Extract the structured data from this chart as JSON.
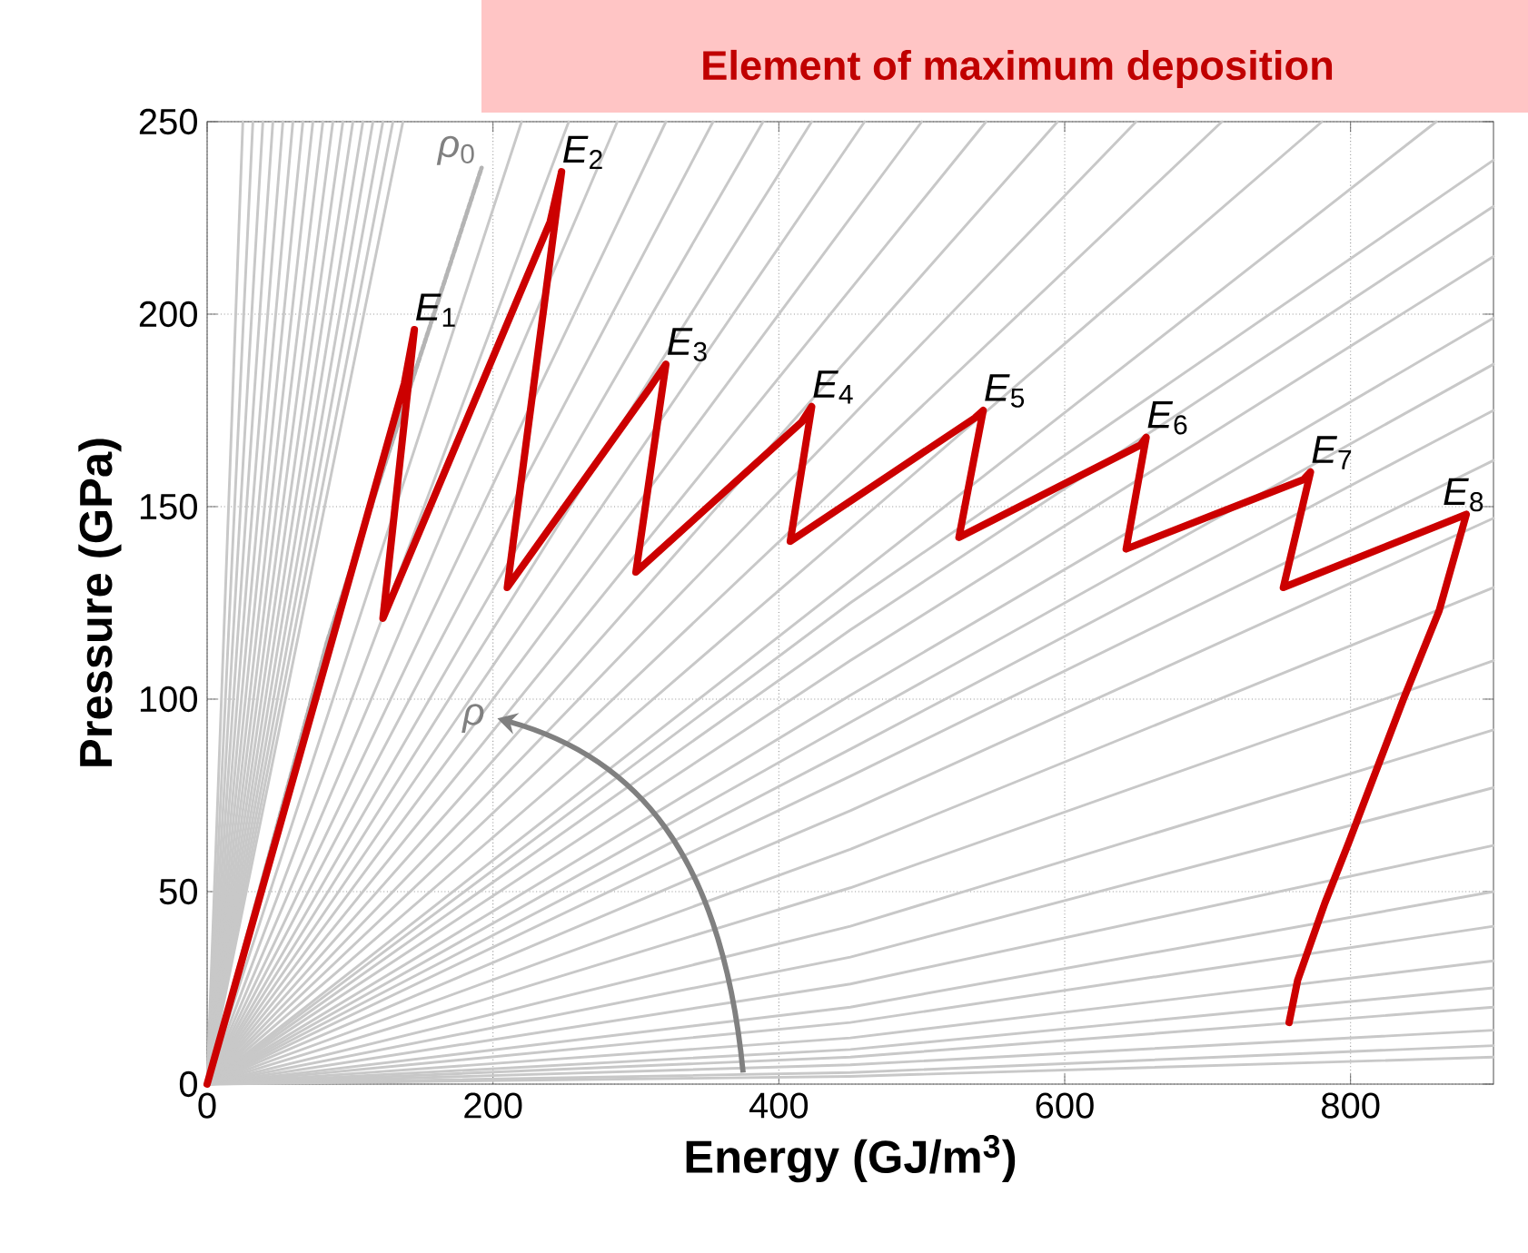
{
  "chart_data": {
    "type": "line",
    "title": "Element of maximum deposition",
    "xlabel": "Energy (GJ/m$^{3}$)",
    "ylabel": "Pressure (GPa)",
    "xlim": [
      0,
      900
    ],
    "ylim": [
      0,
      250
    ],
    "xticks": [
      0,
      200,
      400,
      600,
      800
    ],
    "yticks": [
      0,
      50,
      100,
      150,
      200,
      250
    ],
    "grid": true,
    "annotations": [
      {
        "text": "*E*$_{1}$",
        "x": 145,
        "y": 196
      },
      {
        "text": "*E*$_{2}$",
        "x": 248,
        "y": 237
      },
      {
        "text": "*E*$_{3}$",
        "x": 321,
        "y": 187
      },
      {
        "text": "*E*$_{4}$",
        "x": 423,
        "y": 176
      },
      {
        "text": "*E*$_{5}$",
        "x": 543,
        "y": 175
      },
      {
        "text": "*E*$_{6}$",
        "x": 657,
        "y": 168
      },
      {
        "text": "*E*$_{7}$",
        "x": 772,
        "y": 159
      },
      {
        "text": "*E*$_{8}$",
        "x": 881,
        "y": 148
      },
      {
        "text": "*ρ*$_{0}$",
        "x": 192,
        "y": 238
      },
      {
        "text": "*ρ*",
        "x": 198,
        "y": 95
      }
    ],
    "series": [
      {
        "color": "#c8c8c8",
        "x": [
          0,
          25
        ],
        "values": [
          0,
          250
        ]
      },
      {
        "color": "#c8c8c8",
        "x": [
          0,
          32
        ],
        "values": [
          0,
          250
        ]
      },
      {
        "color": "#c8c8c8",
        "x": [
          0,
          39
        ],
        "values": [
          0,
          250
        ]
      },
      {
        "color": "#c8c8c8",
        "x": [
          0,
          46
        ],
        "values": [
          0,
          250
        ]
      },
      {
        "color": "#c8c8c8",
        "x": [
          0,
          53
        ],
        "values": [
          0,
          250
        ]
      },
      {
        "color": "#c8c8c8",
        "x": [
          0,
          60
        ],
        "values": [
          0,
          250
        ]
      },
      {
        "color": "#c8c8c8",
        "x": [
          0,
          67
        ],
        "values": [
          0,
          250
        ]
      },
      {
        "color": "#c8c8c8",
        "x": [
          0,
          74
        ],
        "values": [
          0,
          250
        ]
      },
      {
        "color": "#c8c8c8",
        "x": [
          0,
          81
        ],
        "values": [
          0,
          250
        ]
      },
      {
        "color": "#c8c8c8",
        "x": [
          0,
          88
        ],
        "values": [
          0,
          250
        ]
      },
      {
        "color": "#c8c8c8",
        "x": [
          0,
          95
        ],
        "values": [
          0,
          250
        ]
      },
      {
        "color": "#c8c8c8",
        "x": [
          0,
          102
        ],
        "values": [
          0,
          250
        ]
      },
      {
        "color": "#c8c8c8",
        "x": [
          0,
          109
        ],
        "values": [
          0,
          250
        ]
      },
      {
        "color": "#c8c8c8",
        "x": [
          0,
          116
        ],
        "values": [
          0,
          250
        ]
      },
      {
        "color": "#c8c8c8",
        "x": [
          0,
          123
        ],
        "values": [
          0,
          250
        ]
      },
      {
        "color": "#c8c8c8",
        "x": [
          0,
          130
        ],
        "values": [
          0,
          250
        ]
      },
      {
        "color": "#c8c8c8",
        "x": [
          0,
          137
        ],
        "values": [
          0,
          250
        ]
      },
      {
        "color": "#c8c8c8",
        "x": [
          0,
          220
        ],
        "values": [
          0,
          250
        ]
      },
      {
        "color": "#c8c8c8",
        "x": [
          0,
          253
        ],
        "values": [
          0,
          250
        ]
      },
      {
        "color": "#c8c8c8",
        "x": [
          0,
          287
        ],
        "values": [
          0,
          250
        ]
      },
      {
        "color": "#c8c8c8",
        "x": [
          0,
          321
        ],
        "values": [
          0,
          250
        ]
      },
      {
        "color": "#c8c8c8",
        "x": [
          0,
          354
        ],
        "values": [
          0,
          250
        ]
      },
      {
        "color": "#c8c8c8",
        "x": [
          0,
          389
        ],
        "values": [
          0,
          250
        ]
      },
      {
        "color": "#c8c8c8",
        "x": [
          0,
          423
        ],
        "values": [
          0,
          250
        ]
      },
      {
        "color": "#c8c8c8",
        "x": [
          0,
          460
        ],
        "values": [
          0,
          250
        ]
      },
      {
        "color": "#c8c8c8",
        "x": [
          0,
          500
        ],
        "values": [
          0,
          250
        ]
      },
      {
        "color": "#c8c8c8",
        "x": [
          0,
          545
        ],
        "values": [
          0,
          250
        ]
      },
      {
        "color": "#c8c8c8",
        "x": [
          0,
          595
        ],
        "values": [
          0,
          250
        ]
      },
      {
        "color": "#c8c8c8",
        "x": [
          0,
          650
        ],
        "values": [
          0,
          250
        ]
      },
      {
        "color": "#c8c8c8",
        "x": [
          0,
          710
        ],
        "values": [
          0,
          250
        ]
      },
      {
        "color": "#c8c8c8",
        "x": [
          0,
          780
        ],
        "values": [
          0,
          250
        ]
      },
      {
        "color": "#c8c8c8",
        "x": [
          0,
          860
        ],
        "values": [
          0,
          250
        ]
      },
      {
        "color": "#c8c8c8",
        "x": [
          0,
          450,
          900
        ],
        "values": [
          0,
          125,
          240
        ]
      },
      {
        "color": "#c8c8c8",
        "x": [
          0,
          450,
          900
        ],
        "values": [
          0,
          118,
          228
        ]
      },
      {
        "color": "#c8c8c8",
        "x": [
          0,
          450,
          900
        ],
        "values": [
          0,
          110,
          215
        ]
      },
      {
        "color": "#c8c8c8",
        "x": [
          0,
          450,
          900
        ],
        "values": [
          0,
          101,
          199
        ]
      },
      {
        "color": "#c8c8c8",
        "x": [
          0,
          450,
          900
        ],
        "values": [
          0,
          94,
          187
        ]
      },
      {
        "color": "#c8c8c8",
        "x": [
          0,
          450,
          900
        ],
        "values": [
          0,
          87,
          175
        ]
      },
      {
        "color": "#c8c8c8",
        "x": [
          0,
          450,
          900
        ],
        "values": [
          0,
          80,
          162
        ]
      },
      {
        "color": "#c8c8c8",
        "x": [
          0,
          450,
          900
        ],
        "values": [
          0,
          71,
          147
        ]
      },
      {
        "color": "#c8c8c8",
        "x": [
          0,
          450,
          900
        ],
        "values": [
          0,
          61,
          129
        ]
      },
      {
        "color": "#c8c8c8",
        "x": [
          0,
          450,
          900
        ],
        "values": [
          0,
          51,
          110
        ]
      },
      {
        "color": "#c8c8c8",
        "x": [
          0,
          450,
          900
        ],
        "values": [
          0,
          41,
          92
        ]
      },
      {
        "color": "#c8c8c8",
        "x": [
          0,
          450,
          900
        ],
        "values": [
          0,
          33,
          77
        ]
      },
      {
        "color": "#c8c8c8",
        "x": [
          0,
          450,
          900
        ],
        "values": [
          0,
          26,
          62
        ]
      },
      {
        "color": "#c8c8c8",
        "x": [
          0,
          450,
          900
        ],
        "values": [
          0,
          20,
          50
        ]
      },
      {
        "color": "#c8c8c8",
        "x": [
          0,
          450,
          900
        ],
        "values": [
          0,
          16,
          41
        ]
      },
      {
        "color": "#c8c8c8",
        "x": [
          0,
          450,
          900
        ],
        "values": [
          0,
          12,
          32
        ]
      },
      {
        "color": "#c8c8c8",
        "x": [
          0,
          450,
          900
        ],
        "values": [
          0,
          9,
          25
        ]
      },
      {
        "color": "#c8c8c8",
        "x": [
          0,
          450,
          900
        ],
        "values": [
          0,
          7,
          20
        ]
      },
      {
        "color": "#c8c8c8",
        "x": [
          0,
          450,
          900
        ],
        "values": [
          0,
          5,
          14
        ]
      },
      {
        "color": "#c8c8c8",
        "x": [
          0,
          450,
          900
        ],
        "values": [
          0,
          3,
          10
        ]
      },
      {
        "color": "#c8c8c8",
        "x": [
          0,
          450,
          900
        ],
        "values": [
          0,
          2,
          7
        ]
      },
      {
        "color": "#b4b4b4",
        "line_style": "dotted",
        "x": [
          0,
          84,
          192
        ],
        "values": [
          0,
          115,
          238
        ]
      },
      {
        "color": "#cc0000",
        "x": [
          0,
          138,
          145,
          123,
          240,
          248,
          210,
          310,
          321,
          300,
          416,
          423,
          408,
          537,
          543,
          526,
          653,
          657,
          643,
          767,
          772,
          753,
          881,
          862,
          837,
          799,
          782,
          763,
          757
        ],
        "values": [
          0,
          182,
          196,
          121,
          224,
          237,
          129,
          181,
          187,
          133,
          172,
          176,
          141,
          173,
          175,
          142,
          166,
          168,
          139,
          157,
          159,
          129,
          148,
          123,
          100,
          63,
          47,
          27,
          16
        ]
      }
    ]
  }
}
